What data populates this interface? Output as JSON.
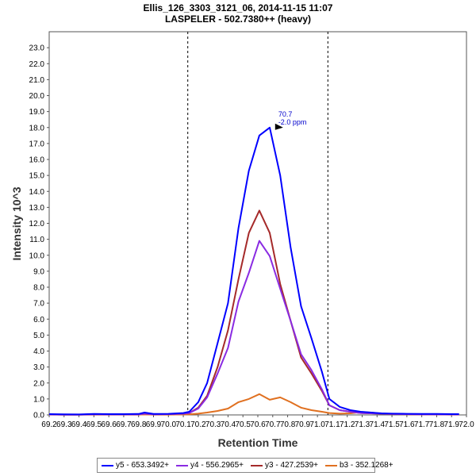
{
  "header": {
    "title": "Ellis_126_3303_3121_06, 2014-11-15 11:07",
    "subtitle": "LASPELER - 502.7380++ (heavy)"
  },
  "chart_data": {
    "type": "line",
    "title": "Ellis_126_3303_3121_06, 2014-11-15 11:07",
    "subtitle": "LASPELER - 502.7380++ (heavy)",
    "xlabel": "Retention Time",
    "ylabel": "Intensity 10^3",
    "xlim": [
      69.2,
      72.0
    ],
    "ylim": [
      0,
      24
    ],
    "xticks": [
      "69.2",
      "69.3",
      "69.4",
      "69.5",
      "69.6",
      "69.7",
      "69.8",
      "69.9",
      "70.0",
      "70.1",
      "70.2",
      "70.3",
      "70.4",
      "70.5",
      "70.6",
      "70.7",
      "70.8",
      "70.9",
      "71.0",
      "71.1",
      "71.2",
      "71.3",
      "71.4",
      "71.5",
      "71.6",
      "71.7",
      "71.8",
      "71.9",
      "72.0"
    ],
    "yticks": [
      "0.0",
      "1.0",
      "2.0",
      "3.0",
      "4.0",
      "5.0",
      "6.0",
      "7.0",
      "8.0",
      "9.0",
      "10.0",
      "11.0",
      "12.0",
      "13.0",
      "14.0",
      "15.0",
      "16.0",
      "17.0",
      "18.0",
      "19.0",
      "20.0",
      "21.0",
      "22.0",
      "23.0"
    ],
    "integration_bounds": [
      70.13,
      71.07
    ],
    "peak_annotation": {
      "x": 70.78,
      "y": 18.0,
      "label1": "70.7",
      "label2": "-2.0 ppm"
    },
    "x": [
      69.2,
      69.3,
      69.4,
      69.5,
      69.6,
      69.7,
      69.8,
      69.84,
      69.9,
      70.0,
      70.1,
      70.14,
      70.2,
      70.26,
      70.33,
      70.4,
      70.47,
      70.54,
      70.61,
      70.68,
      70.75,
      70.82,
      70.89,
      70.96,
      71.03,
      71.08,
      71.15,
      71.22,
      71.29,
      71.36,
      71.43,
      71.5,
      71.6,
      71.7,
      71.8,
      71.9,
      71.95
    ],
    "series": [
      {
        "name": "y5 - 653.3492+",
        "color": "#0000ff",
        "values": [
          0.05,
          0.04,
          0.03,
          0.06,
          0.05,
          0.05,
          0.06,
          0.15,
          0.06,
          0.07,
          0.12,
          0.2,
          0.8,
          2.0,
          4.5,
          7.0,
          11.7,
          15.3,
          17.5,
          18.0,
          15.0,
          10.5,
          6.8,
          4.8,
          2.7,
          1.0,
          0.5,
          0.3,
          0.2,
          0.15,
          0.1,
          0.08,
          0.07,
          0.06,
          0.06,
          0.05,
          0.05
        ]
      },
      {
        "name": "y4 - 556.2965+",
        "color": "#8a2be2",
        "values": [
          0.03,
          0.02,
          0.02,
          0.04,
          0.03,
          0.03,
          0.04,
          0.08,
          0.04,
          0.05,
          0.08,
          0.12,
          0.4,
          1.1,
          2.6,
          4.2,
          7.1,
          8.9,
          10.9,
          9.95,
          7.9,
          5.9,
          3.8,
          2.8,
          1.6,
          0.6,
          0.3,
          0.2,
          0.12,
          0.1,
          0.08,
          0.06,
          0.05,
          0.04,
          0.04,
          0.03,
          0.03
        ]
      },
      {
        "name": "y3 - 427.2539+",
        "color": "#a52a2a",
        "values": [
          0.03,
          0.02,
          0.02,
          0.04,
          0.03,
          0.03,
          0.04,
          0.08,
          0.04,
          0.05,
          0.08,
          0.12,
          0.45,
          1.2,
          3.0,
          5.3,
          8.5,
          11.4,
          12.8,
          11.4,
          8.2,
          5.9,
          3.6,
          2.6,
          1.5,
          0.6,
          0.3,
          0.2,
          0.12,
          0.1,
          0.08,
          0.06,
          0.05,
          0.04,
          0.04,
          0.03,
          0.03
        ]
      },
      {
        "name": "b3 - 352.1268+",
        "color": "#e07020",
        "values": [
          0.02,
          0.01,
          0.01,
          0.02,
          0.02,
          0.02,
          0.02,
          0.03,
          0.02,
          0.02,
          0.03,
          0.04,
          0.08,
          0.15,
          0.25,
          0.4,
          0.8,
          1.0,
          1.3,
          0.95,
          1.1,
          0.8,
          0.45,
          0.3,
          0.2,
          0.12,
          0.08,
          0.1,
          0.18,
          0.15,
          0.08,
          0.05,
          0.04,
          0.03,
          0.03,
          0.02,
          0.02
        ]
      }
    ],
    "legend_position": "bottom-center",
    "grid": false
  }
}
